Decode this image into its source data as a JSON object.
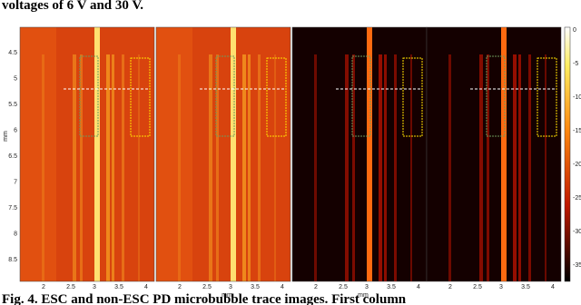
{
  "header": {
    "text": "voltages of 6 V and 30 V."
  },
  "figure": {
    "y_axis": {
      "label": "mm",
      "ticks": [
        "4.5",
        "5",
        "5.5",
        "6",
        "6.5",
        "7",
        "7.5",
        "8",
        "8.5"
      ]
    },
    "x_axis": {
      "label": "mm",
      "ticks": [
        "2",
        "2.5",
        "3",
        "3.5",
        "4"
      ]
    },
    "colorbar": {
      "ticks": [
        "0",
        "-5",
        "-10",
        "-15",
        "-20",
        "-25",
        "-30",
        "-35"
      ]
    }
  },
  "caption": {
    "text": "Fig. 4.  ESC and non-ESC PD microbubble trace images. First column"
  }
}
